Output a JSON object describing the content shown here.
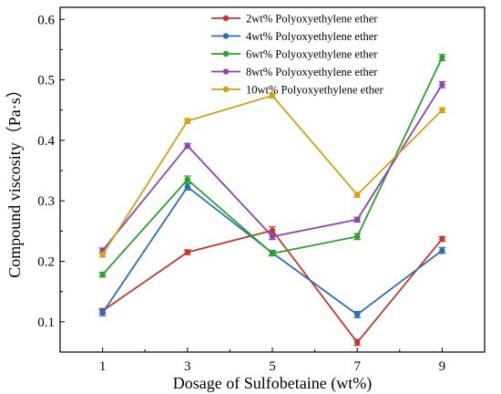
{
  "chart_data": {
    "type": "line",
    "xlabel": "Dosage of Sulfobetaine (wt%)",
    "ylabel": "Compound viscosity（Pa·s）",
    "x": [
      1,
      3,
      5,
      7,
      9
    ],
    "xlim": [
      0,
      10
    ],
    "ylim": [
      0.05,
      0.62
    ],
    "xticks": [
      1,
      3,
      5,
      7,
      9
    ],
    "yticks": [
      0.1,
      0.2,
      0.3,
      0.4,
      0.5,
      0.6
    ],
    "grid": false,
    "legend_position": "top-right",
    "series": [
      {
        "name": "2wt% Polyoxyethylene ether",
        "color": "#c0392b",
        "values": [
          0.118,
          0.215,
          0.251,
          0.066,
          0.237
        ],
        "err": [
          0.004,
          0.004,
          0.006,
          0.005,
          0.004
        ]
      },
      {
        "name": "4wt% Polyoxyethylene ether",
        "color": "#2e6db4",
        "values": [
          0.115,
          0.323,
          0.214,
          0.112,
          0.218
        ],
        "err": [
          0.005,
          0.005,
          0.004,
          0.005,
          0.005
        ]
      },
      {
        "name": "6wt% Polyoxyethylene ether",
        "color": "#2ca02c",
        "values": [
          0.178,
          0.335,
          0.213,
          0.241,
          0.537
        ],
        "err": [
          0.004,
          0.006,
          0.004,
          0.005,
          0.005
        ]
      },
      {
        "name": "8wt% Polyoxyethylene ether",
        "color": "#8e44ad",
        "values": [
          0.218,
          0.391,
          0.241,
          0.269,
          0.492
        ],
        "err": [
          0.004,
          0.004,
          0.005,
          0.004,
          0.005
        ]
      },
      {
        "name": "10wt% Polyoxyethylene ether",
        "color": "#d4a017",
        "values": [
          0.211,
          0.432,
          0.474,
          0.31,
          0.45
        ],
        "err": [
          0.004,
          0.004,
          0.004,
          0.004,
          0.004
        ]
      }
    ]
  }
}
